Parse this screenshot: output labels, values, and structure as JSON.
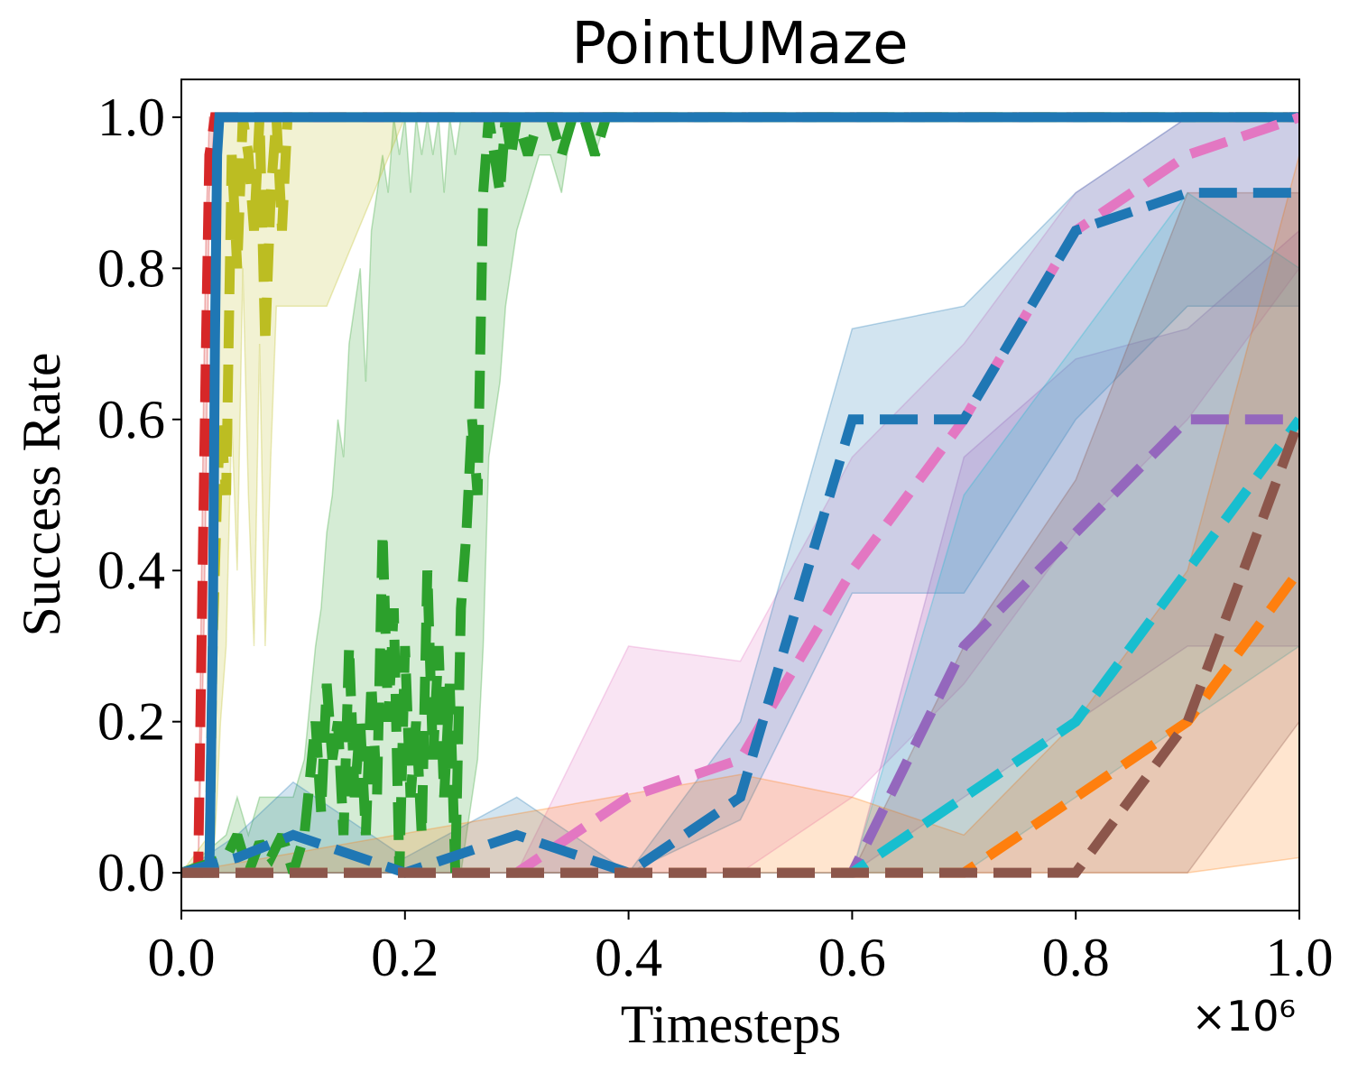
{
  "chart_data": {
    "type": "line",
    "title": "PointUMaze",
    "xlabel": "Timesteps",
    "ylabel": "Success Rate",
    "x_offset_label": "×10⁶",
    "xlim": [
      0.0,
      1.0
    ],
    "ylim": [
      -0.05,
      1.05
    ],
    "x_ticks": [
      "0.0",
      "0.2",
      "0.4",
      "0.6",
      "0.8",
      "1.0"
    ],
    "y_ticks": [
      "0.0",
      "0.2",
      "0.4",
      "0.6",
      "0.8",
      "1.0"
    ],
    "x_tick_values": [
      0.0,
      0.2,
      0.4,
      0.6,
      0.8,
      1.0
    ],
    "y_tick_values": [
      0.0,
      0.2,
      0.4,
      0.6,
      0.8,
      1.0
    ],
    "grid": false,
    "legend": "none",
    "series": [
      {
        "color": "#d62728",
        "style": "dashed",
        "x": [
          0,
          0.015,
          0.02,
          0.022,
          0.025,
          0.03,
          0.04,
          0.1,
          0.5,
          1.0
        ],
        "y": [
          0,
          0,
          0.5,
          0.7,
          0.95,
          1,
          1,
          1,
          1,
          1
        ],
        "lower": [
          0,
          0,
          0.3,
          0.5,
          0.9,
          1,
          1,
          1,
          1,
          1
        ],
        "upper": [
          0,
          0,
          0.65,
          0.85,
          1,
          1,
          1,
          1,
          1,
          1
        ]
      },
      {
        "color": "#2ca02c",
        "style": "dashed",
        "x": [
          0,
          0.04,
          0.05,
          0.06,
          0.07,
          0.08,
          0.09,
          0.1,
          0.11,
          0.12,
          0.125,
          0.13,
          0.135,
          0.14,
          0.145,
          0.15,
          0.155,
          0.16,
          0.165,
          0.17,
          0.175,
          0.18,
          0.185,
          0.19,
          0.195,
          0.2,
          0.205,
          0.21,
          0.215,
          0.22,
          0.225,
          0.23,
          0.235,
          0.24,
          0.245,
          0.25,
          0.255,
          0.26,
          0.265,
          0.27,
          0.275,
          0.28,
          0.285,
          0.29,
          0.295,
          0.3,
          0.31,
          0.32,
          0.33,
          0.34,
          0.35,
          0.36,
          0.37,
          0.38,
          0.4,
          0.5,
          1.0
        ],
        "y": [
          0,
          0.02,
          0.05,
          0.0,
          0.04,
          0.02,
          0.05,
          0.0,
          0.05,
          0.2,
          0.08,
          0.25,
          0.15,
          0.2,
          0.05,
          0.3,
          0.1,
          0.2,
          0.05,
          0.25,
          0.1,
          0.45,
          0.2,
          0.35,
          0.0,
          0.3,
          0.1,
          0.2,
          0.05,
          0.4,
          0.15,
          0.3,
          0.1,
          0.25,
          0.0,
          0.35,
          0.45,
          0.6,
          0.5,
          0.9,
          1.0,
          0.95,
          0.9,
          1.0,
          0.95,
          1.0,
          0.95,
          1.0,
          1.0,
          0.95,
          1.0,
          1.0,
          0.95,
          1.0,
          1.0,
          1.0,
          1.0
        ],
        "lower": [
          0,
          0,
          0,
          0,
          0,
          0,
          0,
          0,
          0,
          0,
          0,
          0,
          0,
          0,
          0,
          0,
          0,
          0,
          0,
          0,
          0,
          0,
          0,
          0,
          0,
          0,
          0,
          0,
          0,
          0,
          0,
          0,
          0,
          0,
          0,
          0,
          0.05,
          0.1,
          0.15,
          0.3,
          0.55,
          0.6,
          0.65,
          0.75,
          0.8,
          0.85,
          0.9,
          0.95,
          0.95,
          0.9,
          1.0,
          1.0,
          0.95,
          1.0,
          1.0,
          1.0,
          1.0
        ],
        "upper": [
          0,
          0.05,
          0.1,
          0.05,
          0.1,
          0.1,
          0.1,
          0.1,
          0.15,
          0.3,
          0.35,
          0.45,
          0.5,
          0.6,
          0.55,
          0.7,
          0.75,
          0.8,
          0.65,
          0.85,
          0.9,
          0.95,
          0.9,
          1.0,
          0.95,
          1.0,
          0.9,
          1.0,
          0.95,
          1.0,
          0.95,
          1.0,
          0.9,
          1.0,
          0.95,
          1.0,
          1.0,
          1.0,
          1.0,
          1.0,
          1.0,
          1.0,
          1.0,
          1.0,
          1.0,
          1.0,
          1.0,
          1.0,
          1.0,
          1.0,
          1.0,
          1.0,
          1.0,
          1.0,
          1.0,
          1.0,
          1.0
        ]
      },
      {
        "color": "#bcbd22",
        "style": "dashed",
        "x": [
          0,
          0.025,
          0.028,
          0.032,
          0.035,
          0.04,
          0.045,
          0.05,
          0.055,
          0.06,
          0.065,
          0.07,
          0.075,
          0.08,
          0.085,
          0.09,
          0.095,
          0.1,
          0.11,
          0.12,
          0.13,
          0.2,
          0.5,
          1.0
        ],
        "y": [
          0,
          0,
          0.3,
          0.5,
          0.6,
          0.5,
          0.95,
          0.8,
          1.0,
          0.95,
          0.85,
          1.0,
          0.7,
          0.9,
          1.0,
          0.85,
          1.0,
          1.0,
          1.0,
          1.0,
          1.0,
          1.0,
          1.0,
          1.0
        ],
        "lower": [
          0,
          0,
          0,
          0.1,
          0.2,
          0.3,
          0.6,
          0.4,
          0.8,
          0.5,
          0.3,
          0.7,
          0.3,
          0.55,
          0.75,
          0.75,
          0.75,
          0.75,
          0.75,
          0.75,
          0.75,
          1.0,
          1.0,
          1.0
        ],
        "upper": [
          0,
          0.05,
          0.6,
          0.9,
          1.0,
          1.0,
          1.0,
          1.0,
          1.0,
          1.0,
          1.0,
          1.0,
          1.0,
          1.0,
          1.0,
          1.0,
          1.0,
          1.0,
          1.0,
          1.0,
          1.0,
          1.0,
          1.0,
          1.0
        ]
      },
      {
        "color": "#1f77b4",
        "style": "solid",
        "x": [
          0,
          0.025,
          0.028,
          0.03,
          0.032,
          0.034,
          0.036,
          0.04,
          0.1,
          0.5,
          1.0
        ],
        "y": [
          0,
          0,
          0.3,
          0.7,
          0.95,
          1,
          1,
          1,
          1,
          1,
          1
        ],
        "lower": [
          0,
          0,
          0.2,
          0.6,
          0.9,
          1,
          1,
          1,
          1,
          1,
          1
        ],
        "upper": [
          0,
          0,
          0.4,
          0.8,
          1,
          1,
          1,
          1,
          1,
          1,
          1
        ]
      },
      {
        "color": "#e377c2",
        "style": "dashed",
        "x": [
          0,
          0.3,
          0.4,
          0.5,
          0.6,
          0.7,
          0.8,
          0.9,
          1.0
        ],
        "y": [
          0,
          0,
          0.1,
          0.15,
          0.4,
          0.6,
          0.85,
          0.95,
          1.0
        ],
        "lower": [
          0,
          0,
          0,
          0,
          0.1,
          0.25,
          0.45,
          0.6,
          0.8
        ],
        "upper": [
          0,
          0,
          0.3,
          0.28,
          0.55,
          0.7,
          0.9,
          1.0,
          1.0
        ]
      },
      {
        "color": "#1f77b4",
        "style": "dashed",
        "x": [
          0,
          0.05,
          0.1,
          0.2,
          0.3,
          0.4,
          0.5,
          0.6,
          0.7,
          0.8,
          0.9,
          1.0
        ],
        "y": [
          0,
          0.02,
          0.05,
          0,
          0.05,
          0,
          0.1,
          0.6,
          0.6,
          0.85,
          0.9,
          0.9
        ],
        "lower": [
          0,
          0,
          0,
          0,
          0,
          0,
          0.07,
          0.37,
          0.37,
          0.6,
          0.75,
          0.75
        ],
        "upper": [
          0,
          0.05,
          0.12,
          0.02,
          0.1,
          0,
          0.2,
          0.72,
          0.75,
          0.9,
          1.0,
          1.0
        ]
      },
      {
        "color": "#9467bd",
        "style": "dashed",
        "x": [
          0,
          0.6,
          0.7,
          0.8,
          0.9,
          1.0
        ],
        "y": [
          0,
          0,
          0.3,
          0.45,
          0.6,
          0.6
        ],
        "lower": [
          0,
          0,
          0.1,
          0.2,
          0.3,
          0.3
        ],
        "upper": [
          0,
          0,
          0.55,
          0.68,
          0.72,
          0.85
        ]
      },
      {
        "color": "#17becf",
        "style": "dashed",
        "x": [
          0,
          0.6,
          0.7,
          0.8,
          0.9,
          1.0
        ],
        "y": [
          0,
          0,
          0.1,
          0.2,
          0.4,
          0.6
        ],
        "lower": [
          0,
          0,
          0,
          0.1,
          0.2,
          0.3
        ],
        "upper": [
          0,
          0,
          0.5,
          0.7,
          0.9,
          0.8
        ]
      },
      {
        "color": "#ff7f0e",
        "style": "dashed",
        "x": [
          0,
          0.5,
          0.6,
          0.7,
          0.8,
          0.9,
          1.0
        ],
        "y": [
          0,
          0,
          0,
          0,
          0.1,
          0.2,
          0.4
        ],
        "lower": [
          0,
          0,
          0,
          0,
          0,
          0,
          0.02
        ],
        "upper": [
          0,
          0.13,
          0.1,
          0.05,
          0.2,
          0.4,
          0.95
        ]
      },
      {
        "color": "#8c564b",
        "style": "dashed",
        "x": [
          0,
          0.6,
          0.7,
          0.8,
          0.9,
          1.0
        ],
        "y": [
          0,
          0,
          0,
          0,
          0.2,
          0.6
        ],
        "lower": [
          0,
          0,
          0,
          0,
          0,
          0.2
        ],
        "upper": [
          0,
          0,
          0.3,
          0.52,
          0.9,
          0.9
        ]
      }
    ]
  }
}
